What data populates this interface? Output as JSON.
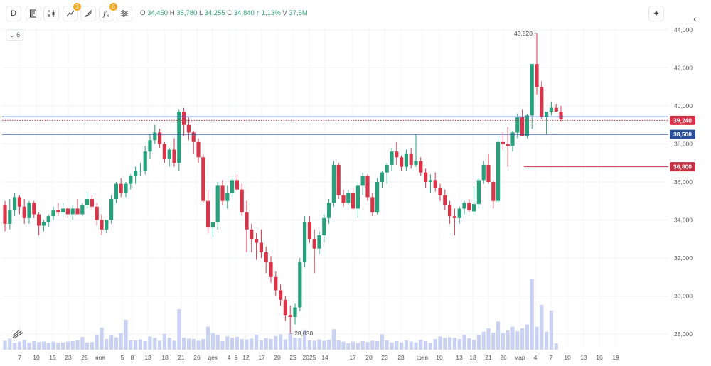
{
  "toolbar": {
    "interval_label": "D",
    "indicator_badge": "3",
    "formula_badge": "6",
    "ohlc": {
      "o_key": "O",
      "o": "34,450",
      "h_key": "H",
      "h": "35,780",
      "l_key": "L",
      "l": "34,255",
      "c_key": "C",
      "c": "34,840",
      "change": "↑ 1,13%",
      "v_key": "V",
      "v": "37,5M"
    },
    "icons": [
      "candles-icon",
      "chart-type-icon",
      "indicators-icon",
      "drawing-icon",
      "formula-icon",
      "settings-icon",
      "sparkle-icon"
    ]
  },
  "collapse_label": "6",
  "colors": {
    "up": "#26a17c",
    "down": "#d6354a",
    "volume": "#c9d2f3",
    "line_blue": "#2b4f9a",
    "line_red": "#c43345"
  },
  "chart_data": {
    "type": "candlestick",
    "y_axis": {
      "min": 28000,
      "max": 44000,
      "ticks": [
        "28,000",
        "30,000",
        "32,000",
        "34,000",
        "36,000",
        "38,000",
        "40,000",
        "42,000",
        "44,000"
      ]
    },
    "x_ticks": [
      "7",
      "10",
      "15",
      "23",
      "28",
      "ноя",
      "5",
      "8",
      "13",
      "18",
      "21",
      "26",
      "дек",
      "4",
      "9",
      "12",
      "17",
      "20",
      "25",
      "2025",
      "14",
      "17",
      "20",
      "23",
      "28",
      "фев",
      "10",
      "13",
      "18",
      "21",
      "26",
      "мар",
      "4",
      "7",
      "10",
      "13",
      "16",
      "19"
    ],
    "annotations": {
      "high": "43,820",
      "low": "28,030"
    },
    "price_lines": [
      {
        "label": "39,240",
        "value": 39240,
        "color": "#d6354a",
        "style": "dotted"
      },
      {
        "label": "38,500",
        "value": 38500,
        "color": "#2b4f9a",
        "style": "solid"
      },
      {
        "label": "36,800",
        "value": 36800,
        "color": "#c43345",
        "style": "segment"
      }
    ],
    "extra_lines": [
      {
        "value": 39430,
        "color": "#2b4f9a"
      }
    ],
    "candles": [
      [
        34800,
        35000,
        33400,
        33800
      ],
      [
        33800,
        35100,
        33500,
        34500
      ],
      [
        34500,
        35400,
        34200,
        35200
      ],
      [
        35200,
        35300,
        34300,
        34700
      ],
      [
        34700,
        35100,
        33800,
        34100
      ],
      [
        34100,
        35000,
        33800,
        34900
      ],
      [
        34900,
        35000,
        34100,
        34300
      ],
      [
        34300,
        34400,
        33200,
        33700
      ],
      [
        33700,
        34000,
        33400,
        33900
      ],
      [
        33900,
        34300,
        33600,
        34200
      ],
      [
        34200,
        34700,
        34000,
        34500
      ],
      [
        34500,
        34900,
        34200,
        34400
      ],
      [
        34400,
        34900,
        34200,
        34600
      ],
      [
        34600,
        34700,
        34100,
        34300
      ],
      [
        34300,
        34800,
        34000,
        34600
      ],
      [
        34600,
        35100,
        34300,
        34300
      ],
      [
        34300,
        34900,
        34200,
        34800
      ],
      [
        34800,
        35500,
        34600,
        35100
      ],
      [
        35100,
        35300,
        34500,
        34700
      ],
      [
        34700,
        34900,
        33700,
        34000
      ],
      [
        34000,
        34300,
        33200,
        33500
      ],
      [
        33500,
        34000,
        33300,
        34000
      ],
      [
        34000,
        35300,
        33800,
        35100
      ],
      [
        35100,
        36000,
        34900,
        35900
      ],
      [
        35900,
        36200,
        35200,
        35400
      ],
      [
        35400,
        36000,
        35200,
        35900
      ],
      [
        35900,
        36400,
        35600,
        36300
      ],
      [
        36300,
        36800,
        35900,
        36600
      ],
      [
        36600,
        37000,
        36300,
        36600
      ],
      [
        36600,
        37900,
        36400,
        37600
      ],
      [
        37600,
        38500,
        37200,
        38200
      ],
      [
        38200,
        39000,
        38000,
        38600
      ],
      [
        38600,
        38800,
        37800,
        38000
      ],
      [
        38000,
        38100,
        37000,
        37200
      ],
      [
        37200,
        37800,
        36800,
        37700
      ],
      [
        37700,
        38300,
        36800,
        37000
      ],
      [
        37000,
        39800,
        36600,
        39700
      ],
      [
        39700,
        39900,
        38400,
        39000
      ],
      [
        39000,
        39400,
        38200,
        38600
      ],
      [
        38600,
        38700,
        37500,
        38100
      ],
      [
        38100,
        38300,
        37000,
        37300
      ],
      [
        37300,
        37500,
        34900,
        35000
      ],
      [
        35000,
        35600,
        33300,
        33600
      ],
      [
        33600,
        33900,
        33100,
        33900
      ],
      [
        33900,
        36000,
        33500,
        35800
      ],
      [
        35800,
        36100,
        34800,
        35000
      ],
      [
        35000,
        35800,
        34600,
        35400
      ],
      [
        35400,
        36200,
        35200,
        36100
      ],
      [
        36100,
        36400,
        35500,
        35600
      ],
      [
        35600,
        35900,
        34200,
        34400
      ],
      [
        34400,
        35000,
        32300,
        33500
      ],
      [
        33500,
        33800,
        32300,
        33000
      ],
      [
        33000,
        33300,
        31900,
        32800
      ],
      [
        32800,
        33500,
        32000,
        32300
      ],
      [
        32300,
        32600,
        31200,
        31800
      ],
      [
        31800,
        32100,
        30700,
        31000
      ],
      [
        31000,
        31300,
        30000,
        30300
      ],
      [
        30300,
        30600,
        29500,
        29800
      ],
      [
        29800,
        30000,
        28700,
        29000
      ],
      [
        29000,
        29500,
        28030,
        28900
      ],
      [
        28900,
        29600,
        28500,
        29400
      ],
      [
        29400,
        32000,
        29200,
        31800
      ],
      [
        31800,
        34200,
        31500,
        33900
      ],
      [
        33900,
        34200,
        32800,
        33000
      ],
      [
        33000,
        33500,
        31200,
        32500
      ],
      [
        32500,
        33400,
        32200,
        33200
      ],
      [
        33200,
        34300,
        32800,
        34100
      ],
      [
        34100,
        35100,
        33800,
        34900
      ],
      [
        34900,
        37100,
        34700,
        36900
      ],
      [
        36900,
        37000,
        35100,
        35300
      ],
      [
        35300,
        35600,
        34700,
        34900
      ],
      [
        34900,
        35600,
        34800,
        35400
      ],
      [
        35400,
        35700,
        34500,
        34600
      ],
      [
        34600,
        36000,
        34100,
        35800
      ],
      [
        35800,
        36500,
        35300,
        36300
      ],
      [
        36300,
        36400,
        35000,
        35200
      ],
      [
        35200,
        35400,
        34200,
        34400
      ],
      [
        34400,
        36200,
        34300,
        36000
      ],
      [
        36000,
        36600,
        35700,
        36500
      ],
      [
        36500,
        37000,
        35900,
        36900
      ],
      [
        36900,
        37800,
        36600,
        37600
      ],
      [
        37600,
        38100,
        36900,
        37300
      ],
      [
        37300,
        37400,
        36600,
        36800
      ],
      [
        36800,
        37700,
        36600,
        37500
      ],
      [
        37500,
        37800,
        36700,
        36900
      ],
      [
        36900,
        38500,
        36800,
        37100
      ],
      [
        37100,
        37300,
        36300,
        36500
      ],
      [
        36500,
        36700,
        35700,
        36000
      ],
      [
        36000,
        36400,
        35400,
        36100
      ],
      [
        36100,
        36500,
        35500,
        35700
      ],
      [
        35700,
        35900,
        35000,
        35300
      ],
      [
        35300,
        35600,
        34500,
        34800
      ],
      [
        34800,
        35000,
        33800,
        34200
      ],
      [
        34200,
        34600,
        33200,
        34100
      ],
      [
        34100,
        34700,
        33800,
        34600
      ],
      [
        34600,
        35000,
        34300,
        34900
      ],
      [
        34900,
        35100,
        34400,
        34500
      ],
      [
        34450,
        35780,
        34255,
        34840
      ],
      [
        34840,
        36200,
        34600,
        36100
      ],
      [
        36100,
        37100,
        35900,
        36900
      ],
      [
        36900,
        37500,
        35900,
        36000
      ],
      [
        36000,
        36100,
        34600,
        35000
      ],
      [
        35000,
        38300,
        34900,
        38100
      ],
      [
        38100,
        38600,
        37700,
        38000
      ],
      [
        38000,
        38900,
        36800,
        37900
      ],
      [
        37900,
        38700,
        37600,
        38600
      ],
      [
        38600,
        39600,
        38300,
        39400
      ],
      [
        39400,
        39800,
        38400,
        38400
      ],
      [
        38400,
        39600,
        38300,
        39500
      ],
      [
        39500,
        42200,
        38800,
        42200
      ],
      [
        42200,
        43820,
        40600,
        41000
      ],
      [
        41000,
        41300,
        39300,
        39400
      ],
      [
        39400,
        39700,
        38500,
        39700
      ],
      [
        39700,
        40200,
        39500,
        39900
      ],
      [
        39900,
        40100,
        39700,
        39700
      ],
      [
        39700,
        40000,
        39200,
        39300
      ]
    ],
    "volume": [
      2.1,
      2.6,
      1.6,
      1.9,
      2.3,
      1.6,
      2.0,
      1.8,
      1.9,
      1.6,
      1.9,
      1.6,
      1.7,
      1.9,
      2.0,
      2.2,
      3.0,
      1.7,
      1.8,
      3.4,
      5.2,
      2.5,
      3.3,
      2.9,
      3.9,
      7.0,
      2.2,
      2.2,
      2.4,
      2.0,
      3.1,
      2.8,
      2.1,
      3.7,
      2.8,
      2.1,
      9.5,
      2.8,
      2.6,
      2.5,
      2.1,
      2.5,
      5.4,
      3.9,
      3.4,
      2.0,
      3.1,
      2.8,
      3.0,
      2.5,
      2.4,
      2.6,
      3.5,
      2.2,
      2.7,
      2.5,
      3.2,
      3.6,
      2.4,
      3.9,
      2.8,
      2.7,
      4.7,
      2.2,
      2.1,
      2.4,
      2.1,
      2.3,
      4.8,
      2.2,
      1.9,
      1.5,
      1.9,
      1.6,
      2.0,
      1.8,
      2.1,
      2.0,
      3.6,
      2.2,
      1.7,
      2.0,
      1.7,
      2.2,
      1.9,
      1.7,
      2.3,
      2.0,
      1.6,
      2.5,
      3.1,
      2.8,
      2.9,
      2.8,
      2.5,
      3.5,
      2.7,
      2.3,
      3.4,
      4.2,
      5.0,
      4.0,
      6.6,
      3.9,
      4.5,
      5.4,
      4.3,
      5.0,
      5.9,
      16.6,
      5.4,
      10.5,
      4.2,
      9.2,
      1.5
    ]
  }
}
